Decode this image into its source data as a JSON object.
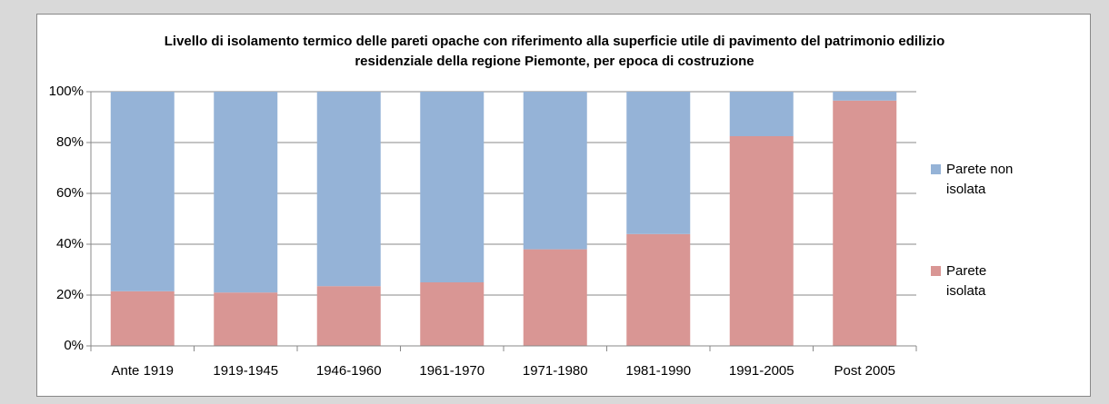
{
  "chart_data": {
    "type": "stacked_bar",
    "title": "Livello di isolamento termico delle pareti opache con riferimento alla superficie utile di pavimento del patrimonio edilizio residenziale della regione Piemonte, per epoca di costruzione",
    "categories": [
      "Ante 1919",
      "1919-1945",
      "1946-1960",
      "1961-1970",
      "1971-1980",
      "1981-1990",
      "1991-2005",
      "Post 2005"
    ],
    "series": [
      {
        "name": "Parete isolata",
        "color": "#d99694",
        "values": [
          21.5,
          21,
          23.5,
          25,
          38,
          44,
          82.5,
          96.5
        ]
      },
      {
        "name": "Parete non isolata",
        "color": "#95b3d7",
        "values": [
          78.5,
          79,
          76.5,
          75,
          62,
          56,
          17.5,
          3.5
        ]
      }
    ],
    "ylim": [
      0,
      100
    ],
    "yticks": [
      {
        "value": 0,
        "label": "0%"
      },
      {
        "value": 20,
        "label": "20%"
      },
      {
        "value": 40,
        "label": "40%"
      },
      {
        "value": 60,
        "label": "60%"
      },
      {
        "value": 80,
        "label": "80%"
      },
      {
        "value": 100,
        "label": "100%"
      }
    ],
    "legend": "right"
  }
}
